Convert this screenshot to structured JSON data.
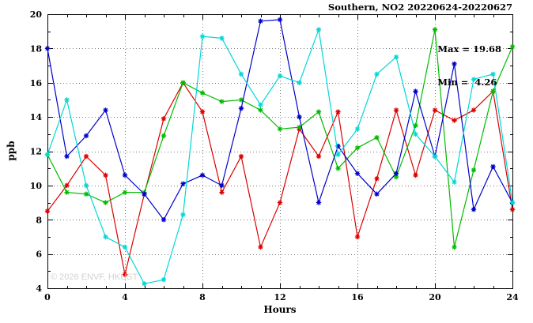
{
  "watermark": "© 2026 ENVF, HKUST",
  "annotation": {
    "max": "Max = 19.68",
    "min": "Min =  4.26"
  },
  "chart_data": {
    "type": "line",
    "title": "Southern, NO2 20220624-20220627",
    "xlabel": "Hours",
    "ylabel": "ppb",
    "xlim": [
      0,
      24
    ],
    "ylim": [
      4,
      20
    ],
    "xtick_step": 4,
    "ytick_step": 2,
    "minor_tick_step": 1,
    "grid": true,
    "legend_position": "none",
    "stats": {
      "max": 19.68,
      "min": 4.26
    },
    "x": [
      0,
      1,
      2,
      3,
      4,
      5,
      6,
      7,
      8,
      9,
      10,
      11,
      12,
      13,
      14,
      15,
      16,
      17,
      18,
      19,
      20,
      21,
      22,
      23,
      24
    ],
    "series": [
      {
        "name": "red",
        "color": "#dd0000",
        "values": [
          8.5,
          10.0,
          11.7,
          10.6,
          4.8,
          9.5,
          13.9,
          16.0,
          14.3,
          9.6,
          11.7,
          6.4,
          9.0,
          13.3,
          11.7,
          14.3,
          7.0,
          10.4,
          14.4,
          10.6,
          14.4,
          13.8,
          14.4,
          15.5,
          8.6
        ]
      },
      {
        "name": "green",
        "color": "#00bb00",
        "values": [
          11.8,
          9.6,
          9.5,
          9.0,
          9.6,
          9.6,
          12.9,
          16.0,
          15.4,
          14.9,
          15.0,
          14.4,
          13.3,
          13.4,
          14.3,
          11.0,
          12.2,
          12.8,
          10.5,
          13.5,
          19.1,
          6.4,
          10.9,
          15.5,
          18.1
        ]
      },
      {
        "name": "blue",
        "color": "#0000cc",
        "values": [
          18.0,
          11.7,
          12.9,
          14.4,
          10.6,
          9.5,
          8.0,
          10.1,
          10.6,
          10.0,
          14.5,
          19.6,
          19.68,
          14.0,
          9.0,
          12.3,
          10.7,
          9.5,
          10.7,
          15.5,
          11.7,
          17.1,
          8.6,
          11.1,
          9.0
        ]
      },
      {
        "name": "cyan",
        "color": "#00d8d8",
        "values": [
          11.8,
          15.0,
          10.0,
          7.0,
          6.4,
          4.26,
          4.5,
          8.3,
          18.7,
          18.6,
          16.5,
          14.7,
          16.4,
          16.0,
          19.1,
          11.8,
          13.3,
          16.5,
          17.5,
          13.0,
          11.7,
          10.2,
          16.2,
          16.5,
          9.0
        ]
      }
    ]
  }
}
